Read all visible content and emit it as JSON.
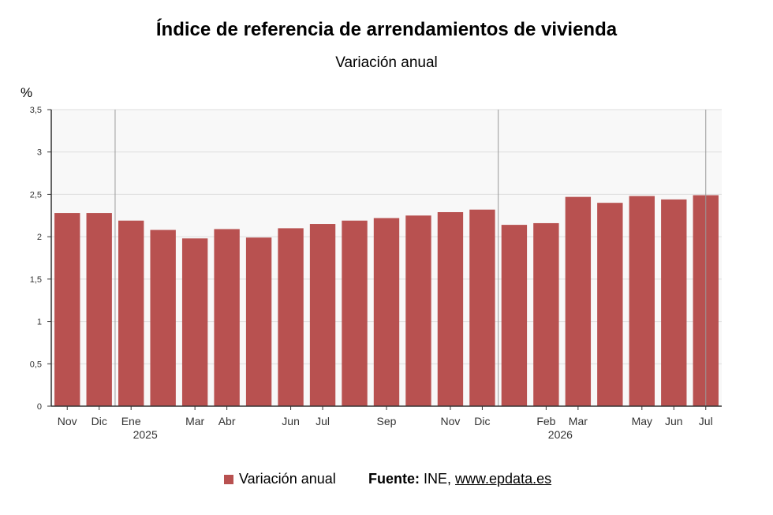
{
  "title": "Índice de referencia de arrendamientos de vivienda",
  "subtitle": "Variación anual",
  "unit": "%",
  "legend": {
    "label": "Variación anual"
  },
  "source": {
    "label": "Fuente:",
    "text": " INE, ",
    "link": "www.epdata.es"
  },
  "colors": {
    "bar": "#b85150",
    "plot_bg": "#f8f8f8",
    "grid": "#dddddd",
    "axis": "#333333",
    "year_line": "#999999"
  },
  "chart_data": {
    "type": "bar",
    "ylim": [
      0,
      3.5
    ],
    "yticks": [
      "0",
      "0,5",
      "1",
      "1,5",
      "2",
      "2,5",
      "3",
      "3,5"
    ],
    "grid": true,
    "legend_position": "bottom",
    "x_labels": [
      "Nov",
      "Dic",
      "Ene",
      "",
      "Mar",
      "Abr",
      "",
      "Jun",
      "Jul",
      "",
      "Sep",
      "",
      "Nov",
      "Dic",
      "",
      "Feb",
      "Mar",
      "",
      "May",
      "Jun",
      "Jul"
    ],
    "year_labels": [
      {
        "index": 2,
        "text": "2025"
      },
      {
        "index": 15,
        "text": "2026"
      }
    ],
    "year_separators_before_index": [
      2,
      14
    ],
    "current_marker_index": 20,
    "series": [
      {
        "name": "Variación anual",
        "values": [
          2.28,
          2.28,
          2.19,
          2.08,
          1.98,
          2.09,
          1.99,
          2.1,
          2.15,
          2.19,
          2.22,
          2.25,
          2.29,
          2.32,
          2.14,
          2.16,
          2.47,
          2.4,
          2.48,
          2.44,
          2.49
        ]
      }
    ]
  }
}
